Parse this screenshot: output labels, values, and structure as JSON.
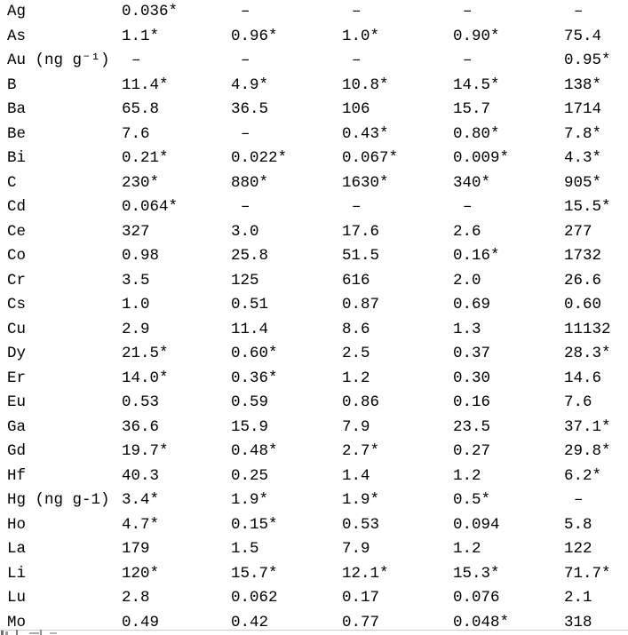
{
  "colors": {
    "text": "#000000",
    "background": "#ffffff",
    "bottom_divider": "#cccccc"
  },
  "table": {
    "dash_char": "–",
    "rows": [
      {
        "label": "Ag",
        "values": [
          "0.036*",
          "–",
          "–",
          "–",
          "–"
        ]
      },
      {
        "label": "As",
        "values": [
          "1.1*",
          "0.96*",
          "1.0*",
          "0.90*",
          "75.4"
        ]
      },
      {
        "label": "Au (ng g⁻¹)",
        "values": [
          "–",
          "–",
          "–",
          "–",
          "0.95*"
        ]
      },
      {
        "label": "B",
        "values": [
          "11.4*",
          "4.9*",
          "10.8*",
          "14.5*",
          "138*"
        ]
      },
      {
        "label": "Ba",
        "values": [
          "65.8",
          "36.5",
          "106",
          "15.7",
          "1714"
        ]
      },
      {
        "label": "Be",
        "values": [
          "7.6",
          "–",
          "0.43*",
          "0.80*",
          "7.8*"
        ]
      },
      {
        "label": "Bi",
        "values": [
          "0.21*",
          "0.022*",
          "0.067*",
          "0.009*",
          "4.3*"
        ]
      },
      {
        "label": "C",
        "values": [
          "230*",
          "880*",
          "1630*",
          "340*",
          "905*"
        ]
      },
      {
        "label": "Cd",
        "values": [
          "0.064*",
          "–",
          "–",
          "–",
          "15.5*"
        ]
      },
      {
        "label": "Ce",
        "values": [
          "327",
          "3.0",
          "17.6",
          "2.6",
          "277"
        ]
      },
      {
        "label": "Co",
        "values": [
          "0.98",
          "25.8",
          "51.5",
          "0.16*",
          "1732"
        ]
      },
      {
        "label": "Cr",
        "values": [
          "3.5",
          "125",
          "616",
          "2.0",
          "26.6"
        ]
      },
      {
        "label": "Cs",
        "values": [
          "1.0",
          "0.51",
          "0.87",
          "0.69",
          "0.60"
        ]
      },
      {
        "label": "Cu",
        "values": [
          "2.9",
          "11.4",
          "8.6",
          "1.3",
          "11132"
        ]
      },
      {
        "label": "Dy",
        "values": [
          "21.5*",
          "0.60*",
          "2.5",
          "0.37",
          "28.3*"
        ]
      },
      {
        "label": "Er",
        "values": [
          "14.0*",
          "0.36*",
          "1.2",
          "0.30",
          "14.6"
        ]
      },
      {
        "label": "Eu",
        "values": [
          "0.53",
          "0.59",
          "0.86",
          "0.16",
          "7.6"
        ]
      },
      {
        "label": "Ga",
        "values": [
          "36.6",
          "15.9",
          "7.9",
          "23.5",
          "37.1*"
        ]
      },
      {
        "label": "Gd",
        "values": [
          "19.7*",
          "0.48*",
          "2.7*",
          "0.27",
          "29.8*"
        ]
      },
      {
        "label": "Hf",
        "values": [
          "40.3",
          "0.25",
          "1.4",
          "1.2",
          "6.2*"
        ]
      },
      {
        "label": "Hg (ng g-1)",
        "values": [
          "3.4*",
          "1.9*",
          "1.9*",
          "0.5*",
          "–"
        ]
      },
      {
        "label": "Ho",
        "values": [
          "4.7*",
          "0.15*",
          "0.53",
          "0.094",
          "5.8"
        ]
      },
      {
        "label": "La",
        "values": [
          "179",
          "1.5",
          "7.9",
          "1.2",
          "122"
        ]
      },
      {
        "label": "Li",
        "values": [
          "120*",
          "15.7*",
          "12.1*",
          "15.3*",
          "71.7*"
        ]
      },
      {
        "label": "Lu",
        "values": [
          "2.8",
          "0.062",
          "0.17",
          "0.076",
          "2.1"
        ]
      },
      {
        "label": "Mo",
        "values": [
          "0.49",
          "0.42",
          "0.77",
          "0.048*",
          "318"
        ]
      }
    ]
  }
}
